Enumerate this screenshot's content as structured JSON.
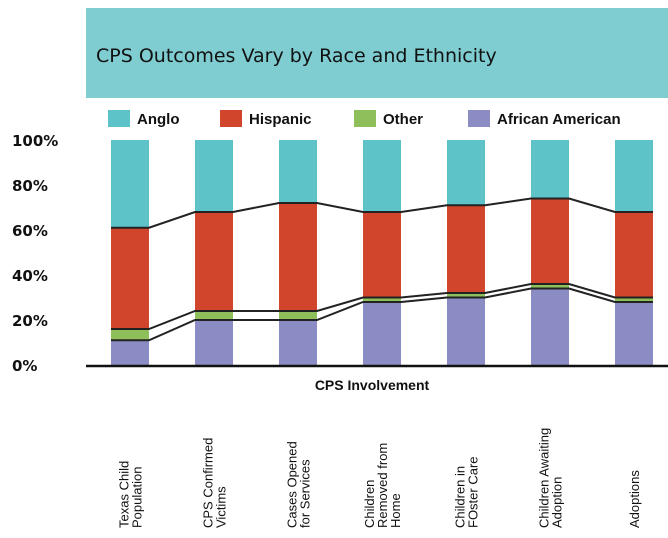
{
  "chart_data": {
    "type": "bar",
    "stacked": true,
    "title": "CPS Outcomes Vary by Race and Ethnicity",
    "xlabel": "CPS Involvement",
    "ylabel": "",
    "ylim": [
      0,
      100
    ],
    "yticks": [
      "0%",
      "20%",
      "40%",
      "60%",
      "80%",
      "100%"
    ],
    "legend_position": "top",
    "categories": [
      [
        "Texas Child",
        "Population"
      ],
      [
        "CPS Confirmed",
        "Victims"
      ],
      [
        "Cases Opened",
        "for Services"
      ],
      [
        "Children",
        "Removed from",
        "Home"
      ],
      [
        "Children in",
        "FOster Care"
      ],
      [
        "Children Awaiting",
        "Adoption"
      ],
      [
        "Adoptions"
      ]
    ],
    "series": [
      {
        "name": "African American",
        "color": "#8b8cc4",
        "values": [
          11,
          20,
          20,
          28,
          30,
          34,
          28
        ]
      },
      {
        "name": "Other",
        "color": "#8fbf5a",
        "values": [
          5,
          4,
          4,
          2,
          2,
          2,
          2
        ]
      },
      {
        "name": "Hispanic",
        "color": "#d1452c",
        "values": [
          45,
          44,
          48,
          38,
          39,
          38,
          38
        ]
      },
      {
        "name": "Anglo",
        "color": "#5ec3c9",
        "values": [
          39,
          32,
          28,
          32,
          29,
          26,
          32
        ]
      }
    ],
    "legend_order": [
      "Anglo",
      "Hispanic",
      "Other",
      "African American"
    ],
    "banner_color": "#7fcdd1"
  }
}
